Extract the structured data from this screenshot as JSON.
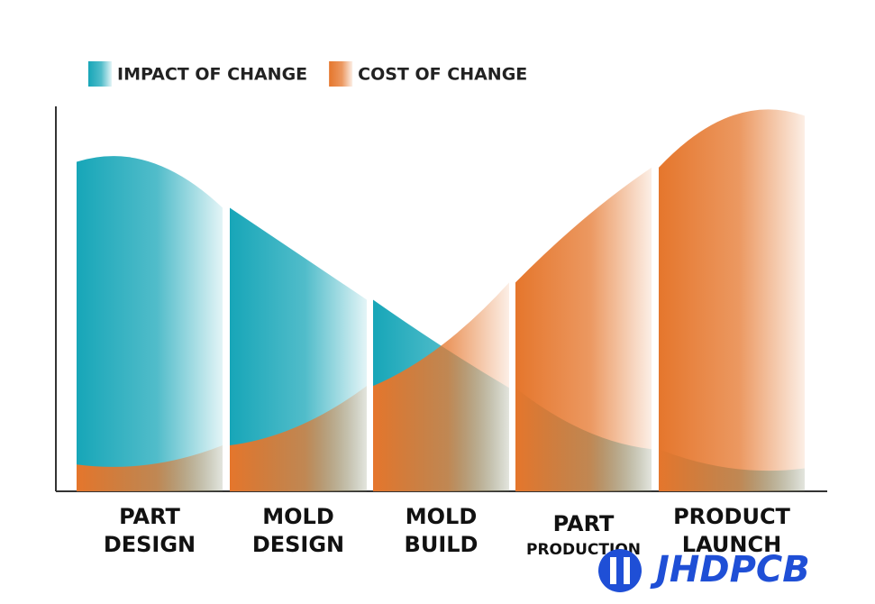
{
  "chart_data": {
    "type": "column-area",
    "categories": [
      [
        "PART",
        "DESIGN"
      ],
      [
        "MOLD",
        "DESIGN"
      ],
      [
        "MOLD",
        "BUILD"
      ],
      [
        "PART",
        "PRODUCTION"
      ],
      [
        "PRODUCT",
        "LAUNCH"
      ]
    ],
    "series": [
      {
        "name": "IMPACT OF CHANGE",
        "color": "#17a6b8",
        "values": [
          86,
          62,
          38,
          16,
          6
        ]
      },
      {
        "name": "COST OF CHANGE",
        "color": "#e5762c",
        "values": [
          7,
          17,
          38,
          71,
          98
        ]
      }
    ],
    "ylim": [
      0,
      100
    ]
  },
  "watermark": "JHDPCB"
}
